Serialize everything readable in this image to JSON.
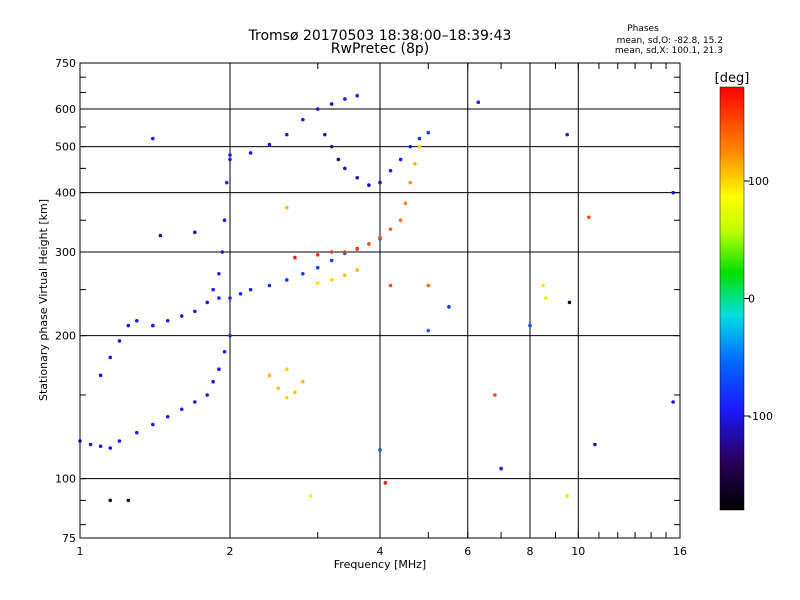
{
  "chart_data": {
    "type": "scatter",
    "title": "Tromsø 20170503 18:38:00–18:39:43",
    "subtitle": "RwPretec (8p)",
    "xlabel": "Frequency [MHz]",
    "ylabel": "Stationary phase Virtual Height [km]",
    "x_scale": "log",
    "y_scale": "log",
    "xlim": [
      1,
      16
    ],
    "ylim": [
      75,
      750
    ],
    "x_ticks": [
      1,
      2,
      4,
      6,
      8,
      10,
      16
    ],
    "x_tick_labels": [
      "1",
      "2",
      "4",
      "6",
      "8",
      "10",
      "16"
    ],
    "y_ticks": [
      75,
      100,
      200,
      300,
      400,
      500,
      600,
      750
    ],
    "y_tick_labels": [
      "75",
      "100",
      "200",
      "300",
      "400",
      "500",
      "600",
      "750"
    ],
    "grid": true,
    "phase_info": {
      "title": "Phases",
      "line1": "mean, sd,O: -82.8, 15.2",
      "line2": "mean, sd,X: 100.1, 21.3"
    },
    "colorbar": {
      "label": "[deg]",
      "min": -180,
      "max": 180,
      "ticks": [
        100,
        0,
        -100
      ],
      "tick_labels": [
        "100",
        "0",
        "-100"
      ]
    },
    "series": [
      {
        "points": [
          [
            1.0,
            120,
            -95
          ],
          [
            1.05,
            118,
            -100
          ],
          [
            1.1,
            117,
            -105
          ],
          [
            1.15,
            116,
            -100
          ],
          [
            1.2,
            120,
            -95
          ],
          [
            1.3,
            125,
            -90
          ],
          [
            1.4,
            130,
            -100
          ],
          [
            1.5,
            135,
            -95
          ],
          [
            1.6,
            140,
            -90
          ],
          [
            1.7,
            145,
            -100
          ],
          [
            1.8,
            150,
            -95
          ],
          [
            1.85,
            160,
            -105
          ],
          [
            1.9,
            170,
            -100
          ],
          [
            1.95,
            185,
            -95
          ],
          [
            2.0,
            200,
            -90
          ]
        ]
      },
      {
        "points": [
          [
            1.1,
            165,
            -100
          ],
          [
            1.15,
            180,
            -100
          ],
          [
            1.2,
            195,
            -105
          ],
          [
            1.25,
            210,
            -100
          ],
          [
            1.3,
            215,
            -95
          ],
          [
            1.4,
            210,
            -100
          ],
          [
            1.5,
            215,
            -95
          ],
          [
            1.6,
            220,
            -100
          ],
          [
            1.7,
            225,
            -95
          ],
          [
            1.8,
            235,
            -100
          ],
          [
            1.85,
            250,
            -95
          ],
          [
            1.9,
            270,
            -90
          ],
          [
            1.93,
            300,
            -95
          ],
          [
            1.95,
            350,
            -90
          ],
          [
            1.97,
            420,
            -85
          ],
          [
            2.0,
            480,
            -90
          ]
        ]
      },
      {
        "points": [
          [
            1.9,
            240,
            -90
          ],
          [
            2.0,
            240,
            -85
          ],
          [
            2.1,
            245,
            -90
          ],
          [
            2.2,
            250,
            -90
          ],
          [
            2.4,
            255,
            -85
          ],
          [
            2.6,
            262,
            -80
          ],
          [
            2.8,
            270,
            -80
          ],
          [
            3.0,
            278,
            -75
          ],
          [
            3.2,
            288,
            -70
          ],
          [
            3.4,
            298,
            -70
          ],
          [
            3.6,
            305,
            -65
          ],
          [
            3.8,
            312,
            -65
          ],
          [
            4.0,
            320,
            -60
          ]
        ]
      },
      {
        "points": [
          [
            2.7,
            292,
            170
          ],
          [
            3.0,
            296,
            165
          ],
          [
            3.2,
            300,
            160
          ],
          [
            3.4,
            300,
            155
          ],
          [
            3.6,
            304,
            150
          ],
          [
            3.8,
            312,
            145
          ],
          [
            4.0,
            322,
            145
          ],
          [
            4.2,
            335,
            140
          ],
          [
            4.4,
            350,
            135
          ],
          [
            4.5,
            380,
            130
          ],
          [
            4.6,
            420,
            120
          ],
          [
            4.7,
            460,
            110
          ],
          [
            4.8,
            500,
            100
          ]
        ]
      },
      {
        "points": [
          [
            3.0,
            258,
            100
          ],
          [
            3.2,
            262,
            100
          ],
          [
            3.4,
            268,
            105
          ],
          [
            3.6,
            275,
            110
          ]
        ]
      },
      {
        "points": [
          [
            2.0,
            470,
            -95
          ],
          [
            2.2,
            485,
            -100
          ],
          [
            2.4,
            505,
            -95
          ],
          [
            2.6,
            530,
            -100
          ],
          [
            2.8,
            570,
            -95
          ],
          [
            3.0,
            600,
            -105
          ],
          [
            3.2,
            615,
            -110
          ],
          [
            3.4,
            630,
            -100
          ],
          [
            3.6,
            640,
            -95
          ]
        ]
      },
      {
        "points": [
          [
            3.1,
            530,
            -120
          ],
          [
            3.2,
            500,
            -120
          ],
          [
            3.3,
            470,
            -125
          ],
          [
            3.4,
            450,
            -120
          ],
          [
            3.6,
            430,
            -115
          ],
          [
            3.8,
            415,
            -120
          ],
          [
            4.0,
            420,
            -115
          ],
          [
            4.2,
            445,
            -100
          ],
          [
            4.4,
            470,
            -95
          ],
          [
            4.6,
            500,
            -90
          ],
          [
            4.8,
            520,
            -85
          ],
          [
            5.0,
            535,
            -80
          ]
        ]
      },
      {
        "points": [
          [
            2.4,
            165,
            110
          ],
          [
            2.5,
            155,
            105
          ],
          [
            2.6,
            148,
            100
          ],
          [
            2.7,
            152,
            105
          ],
          [
            2.8,
            160,
            110
          ],
          [
            2.6,
            170,
            100
          ]
        ]
      },
      {
        "points": [
          [
            1.4,
            520,
            -90
          ],
          [
            6.3,
            620,
            -100
          ],
          [
            9.5,
            530,
            -100
          ],
          [
            15.5,
            400,
            -100
          ],
          [
            15.5,
            145,
            -110
          ],
          [
            7.0,
            105,
            -105
          ],
          [
            9.5,
            92,
            95
          ],
          [
            6.8,
            150,
            150
          ],
          [
            5.5,
            230,
            -80
          ],
          [
            5.0,
            205,
            -60
          ],
          [
            5.0,
            255,
            140
          ],
          [
            4.2,
            255,
            150
          ],
          [
            8.5,
            255,
            95
          ],
          [
            8.6,
            240,
            70
          ],
          [
            8.0,
            210,
            -70
          ],
          [
            9.6,
            235,
            -150
          ],
          [
            10.5,
            355,
            150
          ],
          [
            10.8,
            118,
            -110
          ],
          [
            4.0,
            115,
            -60
          ],
          [
            4.1,
            98,
            170
          ],
          [
            2.9,
            92,
            80
          ],
          [
            1.25,
            90,
            -150
          ],
          [
            1.15,
            90,
            -170
          ],
          [
            1.45,
            325,
            -120
          ],
          [
            1.7,
            330,
            -110
          ],
          [
            2.6,
            372,
            110
          ]
        ]
      }
    ]
  }
}
